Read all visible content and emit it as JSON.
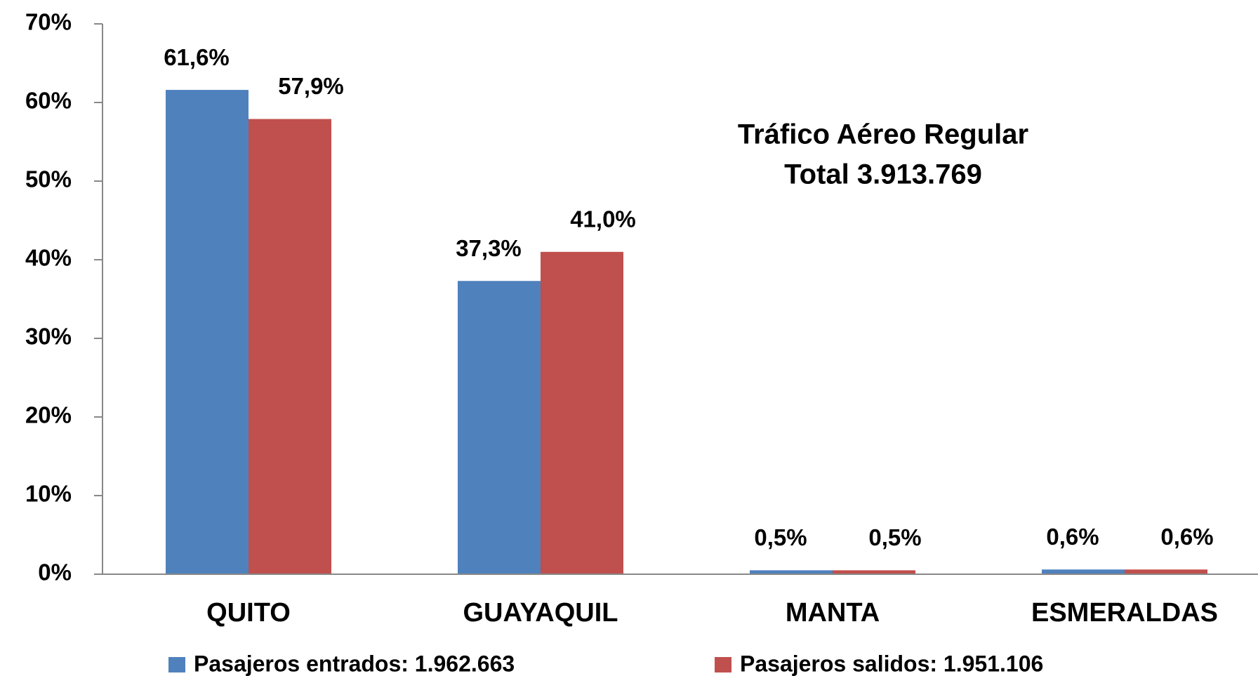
{
  "chart_data": {
    "type": "bar",
    "title": "Tráfico Aéreo Regular",
    "subtitle": "Total 3.913.769",
    "categories": [
      "QUITO",
      "GUAYAQUIL",
      "MANTA",
      "ESMERALDAS"
    ],
    "series": [
      {
        "name": "Pasajeros entrados: 1.962.663",
        "color": "#4f81bd",
        "values": [
          61.6,
          37.3,
          0.5,
          0.6
        ],
        "value_labels": [
          "61,6%",
          "37,3%",
          "0,5%",
          "0,6%"
        ]
      },
      {
        "name": "Pasajeros salidos: 1.951.106",
        "color": "#c0504d",
        "values": [
          57.9,
          41.0,
          0.5,
          0.6
        ],
        "value_labels": [
          "57,9%",
          "41,0%",
          "0,5%",
          "0,6%"
        ]
      }
    ],
    "ylim": [
      0,
      70
    ],
    "yticks": [
      {
        "value": 0,
        "label": "0%"
      },
      {
        "value": 10,
        "label": "10%"
      },
      {
        "value": 20,
        "label": "20%"
      },
      {
        "value": 30,
        "label": "30%"
      },
      {
        "value": 40,
        "label": "40%"
      },
      {
        "value": 50,
        "label": "50%"
      },
      {
        "value": 60,
        "label": "60%"
      },
      {
        "value": 70,
        "label": "70%"
      }
    ],
    "grid": false,
    "legend": "bottom"
  }
}
